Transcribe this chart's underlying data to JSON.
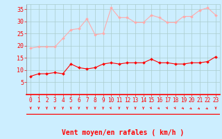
{
  "x": [
    0,
    1,
    2,
    3,
    4,
    5,
    6,
    7,
    8,
    9,
    10,
    11,
    12,
    13,
    14,
    15,
    16,
    17,
    18,
    19,
    20,
    21,
    22,
    23
  ],
  "mean_wind": [
    7.5,
    8.5,
    8.5,
    9.0,
    8.5,
    12.5,
    11.0,
    10.5,
    11.0,
    12.5,
    13.0,
    12.5,
    13.0,
    13.0,
    13.0,
    14.5,
    13.0,
    13.0,
    12.5,
    12.5,
    13.0,
    13.0,
    13.5,
    15.5
  ],
  "gust_wind": [
    19.0,
    19.5,
    19.5,
    19.5,
    23.0,
    26.5,
    27.0,
    31.0,
    24.5,
    25.0,
    35.5,
    31.5,
    31.5,
    29.5,
    29.5,
    32.5,
    31.5,
    29.5,
    29.5,
    32.0,
    32.0,
    34.5,
    35.5,
    32.5
  ],
  "mean_color": "#ff0000",
  "gust_color": "#ffaaaa",
  "background_color": "#cceeff",
  "grid_color": "#aacccc",
  "text_color": "#ff0000",
  "xlabel": "Vent moyen/en rafales ( km/h )",
  "ylim": [
    0,
    37
  ],
  "yticks": [
    5,
    10,
    15,
    20,
    25,
    30,
    35
  ],
  "xlim": [
    -0.5,
    23.5
  ],
  "label_fontsize": 7,
  "tick_fontsize": 6,
  "arrow_dirs": [
    180,
    180,
    180,
    180,
    180,
    180,
    180,
    180,
    180,
    180,
    195,
    180,
    180,
    180,
    180,
    195,
    210,
    195,
    195,
    210,
    225,
    225,
    225,
    180
  ]
}
